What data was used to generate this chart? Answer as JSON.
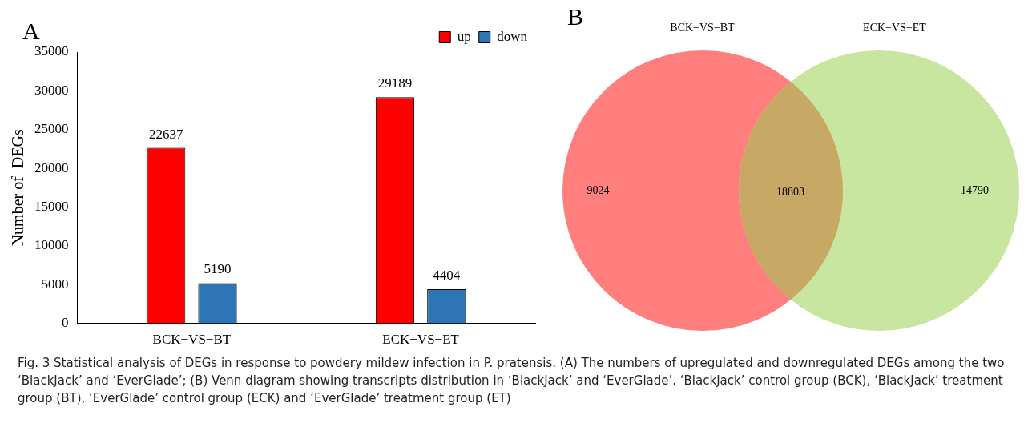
{
  "chart_data": [
    {
      "type": "bar",
      "title": "A",
      "ylabel": "Number of  DEGs",
      "categories": [
        "BCK−VS−BT",
        "ECK−VS−ET"
      ],
      "series": [
        {
          "name": "up",
          "color": "#ff0000",
          "values": [
            22637,
            29189
          ]
        },
        {
          "name": "down",
          "color": "#2e75b6",
          "values": [
            5190,
            4404
          ]
        }
      ],
      "ylim": [
        0,
        35000
      ],
      "yticks": [
        0,
        5000,
        10000,
        15000,
        20000,
        25000,
        30000,
        35000
      ],
      "grid": false,
      "legend": "top right",
      "data_labels": true,
      "annotations": [
        "Fig. 3  Statistical analysis of DEGs in response to powdery mildew infection in P. pratensis. (A) The numbers of upregulated and downregulated DEGs among the two ‘BlackJack’ and ‘EverGlade’; (B) Venn diagram showing transcripts distribution in ‘BlackJack’ and ‘EverGlade’. ‘BlackJack’ control group (BCK), ‘BlackJack’ treatment group (BT), ‘EverGlade’ control group (ECK) and ‘EverGlade’ treatment group (ET)"
      ]
    },
    {
      "type": "other",
      "title": "B",
      "categories": [
        null,
        null,
        null
      ],
      "values": [
        9024,
        18803,
        14790
      ],
      "colors": [
        "#ff7f7f",
        "#c8a865",
        "#c8e6a0"
      ],
      "data_labels": true,
      "annotations": [
        "BCK−VS−BT",
        "ECK−VS−ET"
      ]
    }
  ]
}
